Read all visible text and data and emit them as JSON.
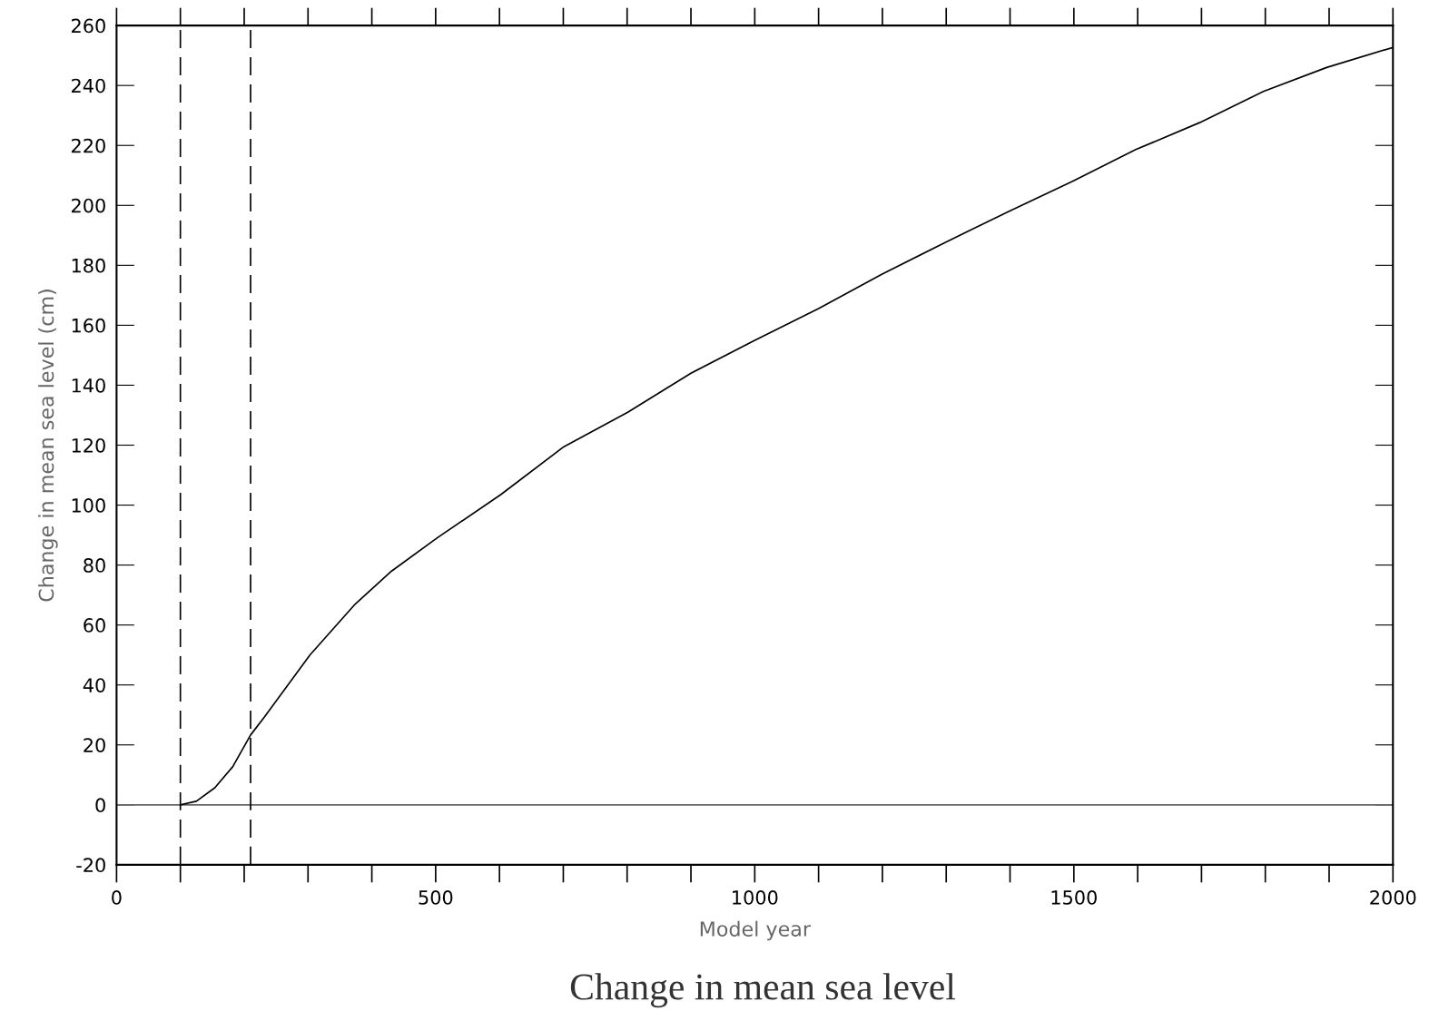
{
  "chart_data": {
    "type": "line",
    "title": "Change in mean sea level",
    "xlabel": "Model year",
    "ylabel": "Change in mean sea level (cm)",
    "series": [
      {
        "color": "#000000",
        "x": [
          100,
          125,
          154,
          182,
          210,
          232,
          303,
          374,
          431,
          502,
          602,
          701,
          801,
          900,
          1000,
          1100,
          1199,
          1299,
          1398,
          1498,
          1597,
          1697,
          1797,
          1896,
          2000
        ],
        "values": [
          0,
          1.2,
          5.7,
          12.7,
          23.3,
          29.4,
          50,
          67,
          78,
          89,
          103.5,
          119.5,
          131,
          144,
          155,
          165.6,
          177,
          187.7,
          198,
          208,
          218.6,
          227.6,
          238,
          246,
          252.7
        ]
      }
    ],
    "xlim": [
      0,
      2000
    ],
    "ylim": [
      -20,
      260
    ],
    "xticks": [
      0,
      500,
      1000,
      1500,
      2000
    ],
    "yticks": [
      -20,
      0,
      20,
      40,
      60,
      80,
      100,
      120,
      140,
      160,
      180,
      200,
      220,
      240,
      260
    ],
    "ref_lines": [
      {
        "axis": "y",
        "value": 0,
        "color": "#666666",
        "line_style": "solid"
      },
      {
        "axis": "x",
        "value": 100,
        "color": "#000000",
        "line_style": "dashed"
      },
      {
        "axis": "x",
        "value": 210,
        "color": "#000000",
        "line_style": "dashed"
      }
    ],
    "grid": false,
    "legend": false,
    "marker": "none",
    "line_style": "solid"
  }
}
